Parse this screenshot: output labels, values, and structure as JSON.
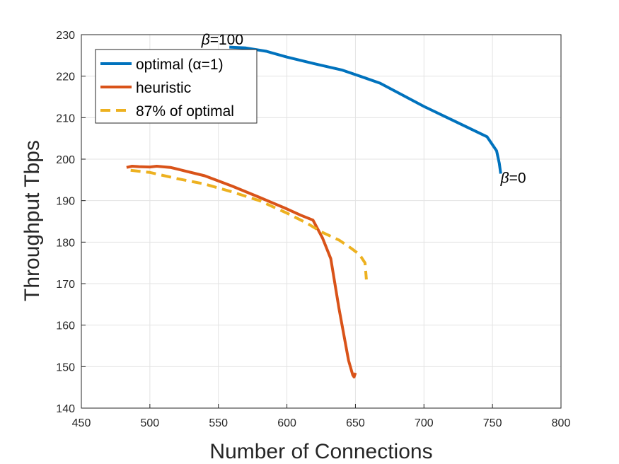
{
  "chart_data": {
    "type": "line",
    "xlabel": "Number of Connections",
    "ylabel": "Throughput Tbps",
    "xlim": [
      450,
      800
    ],
    "ylim": [
      140,
      230
    ],
    "xticks": [
      450,
      500,
      550,
      600,
      650,
      700,
      750,
      800
    ],
    "yticks": [
      140,
      150,
      160,
      170,
      180,
      190,
      200,
      210,
      220,
      230
    ],
    "grid": true,
    "legend_position": "top-left",
    "series": [
      {
        "name": "optimal (α=1)",
        "color": "#0072BD",
        "style": "solid",
        "x": [
          558,
          570,
          585,
          600,
          620,
          640,
          655,
          668,
          700,
          746,
          753,
          755,
          756
        ],
        "y": [
          227,
          226.8,
          226,
          224.6,
          223,
          221.5,
          219.8,
          218.3,
          212.7,
          205.4,
          202,
          199,
          196.5
        ]
      },
      {
        "name": "heuristic",
        "color": "#D95319",
        "style": "solid",
        "x": [
          483,
          487,
          492,
          500,
          505,
          515,
          525,
          540,
          560,
          580,
          600,
          610,
          619,
          626,
          632,
          638,
          645,
          648,
          649,
          650
        ],
        "y": [
          198,
          198.3,
          198.2,
          198.1,
          198.3,
          198,
          197.2,
          196,
          193.5,
          190.8,
          188,
          186.5,
          185.3,
          181,
          176,
          164,
          151.5,
          148,
          147.5,
          148.5
        ]
      },
      {
        "name": "87% of optimal",
        "color": "#EDB120",
        "style": "dashed",
        "x": [
          486,
          500,
          520,
          540,
          560,
          580,
          600,
          615,
          625,
          638,
          647,
          653,
          657,
          658
        ],
        "y": [
          197.3,
          196.8,
          195.3,
          194,
          192.1,
          190,
          187,
          184.5,
          182.5,
          180.5,
          178.5,
          177,
          175,
          171
        ]
      }
    ],
    "annotations": [
      {
        "symbol": "β",
        "text": "=100",
        "x": 555,
        "y": 228.8
      },
      {
        "symbol": "β",
        "text": "=0",
        "x": 758,
        "y": 195.5
      }
    ]
  }
}
